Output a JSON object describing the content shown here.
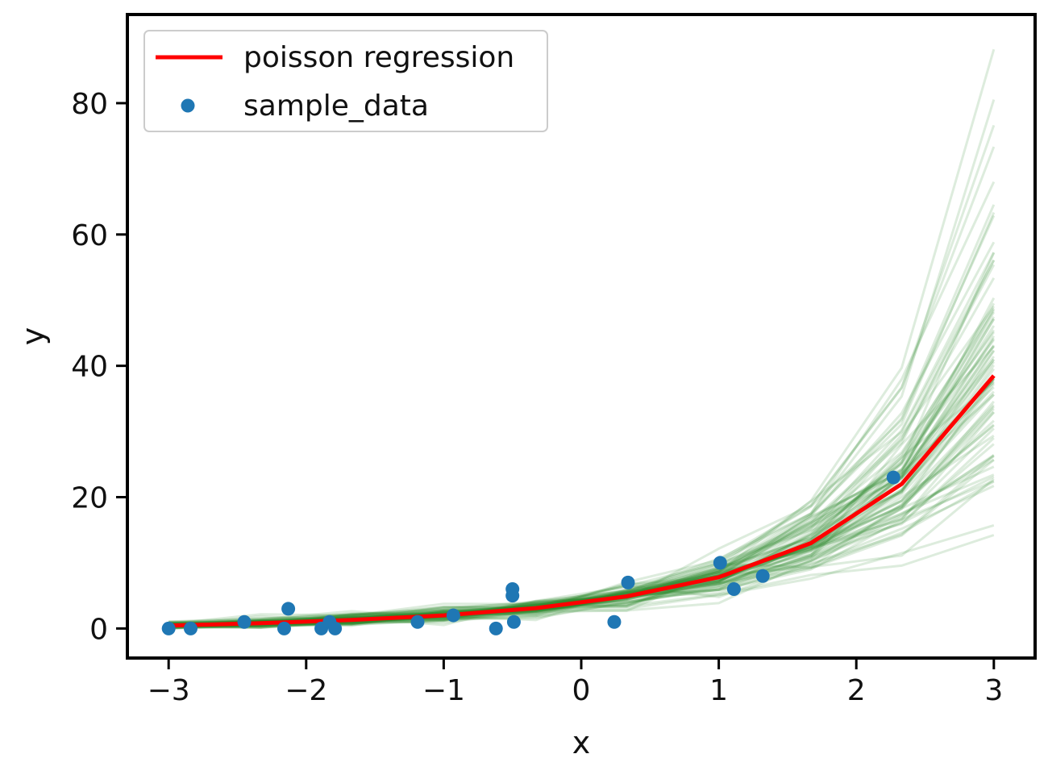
{
  "chart_data": {
    "type": "line",
    "title": "",
    "xlabel": "x",
    "ylabel": "y",
    "xlim": [
      -3.3,
      3.3
    ],
    "ylim": [
      -4.5,
      93.5
    ],
    "xticks": [
      -3,
      -2,
      -1,
      0,
      1,
      2,
      3
    ],
    "yticks": [
      0,
      20,
      40,
      60,
      80
    ],
    "xtick_labels": [
      "−3",
      "−2",
      "−1",
      "0",
      "1",
      "2",
      "3"
    ],
    "ytick_labels": [
      "0",
      "20",
      "40",
      "60",
      "80"
    ],
    "grid": false,
    "legend": {
      "location": "top-left",
      "entries": [
        {
          "label": "poisson regression",
          "marker": "line",
          "color": "#ff0000"
        },
        {
          "label": "sample_data",
          "marker": "dot",
          "color": "#1f77b4"
        }
      ]
    },
    "regression": {
      "name": "poisson regression",
      "color": "#ff0000",
      "x": [
        -3.0,
        -2.33,
        -1.67,
        -1.0,
        -0.33,
        0.33,
        1.0,
        1.67,
        2.33,
        3.0
      ],
      "y": [
        0.45,
        0.8,
        1.3,
        2.0,
        3.1,
        4.9,
        7.8,
        13.0,
        22.0,
        38.5
      ]
    },
    "posterior_samples": {
      "description": "predictive sample curves",
      "color": "#2e8b2e",
      "count": 80,
      "x": [
        -3.0,
        -2.33,
        -1.67,
        -1.0,
        -0.33,
        0.33,
        1.0,
        1.67,
        2.33,
        3.0
      ]
    },
    "sample_data": {
      "name": "sample_data",
      "color": "#1f77b4",
      "x": [
        -3.0,
        -2.84,
        -2.45,
        -2.16,
        -2.13,
        -1.89,
        -1.83,
        -1.79,
        -1.19,
        -0.93,
        -0.62,
        -0.5,
        -0.5,
        -0.49,
        0.24,
        0.34,
        1.01,
        1.11,
        1.32,
        2.27
      ],
      "y": [
        0,
        0,
        1,
        0,
        3,
        0,
        1,
        0,
        1,
        2,
        0,
        6,
        5,
        1,
        1,
        7,
        10,
        6,
        8,
        23
      ]
    }
  }
}
